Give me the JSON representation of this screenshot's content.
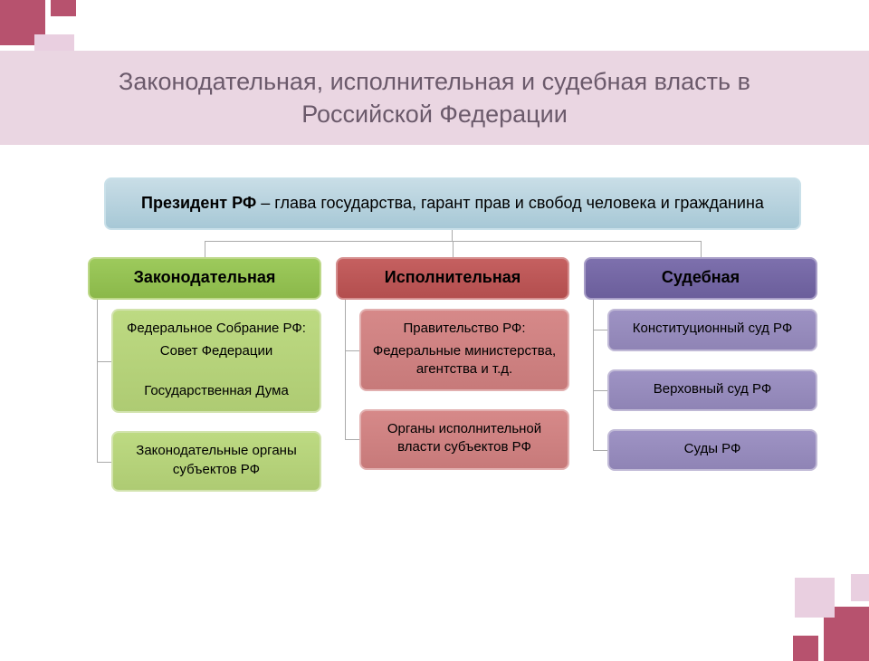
{
  "colors": {
    "title_band_bg": "#ead6e2",
    "title_text": "#6b5a6b",
    "corner_a": "#b7526e",
    "corner_b": "#e9cfe0",
    "president_fill": "#a7c8d6",
    "president_border": "#c9e0e9",
    "green_header": "#8bb84a",
    "green_header_border": "#bdd889",
    "green_item": "#aecb73",
    "green_item_border": "#d2e3ae",
    "red_header": "#b34e4e",
    "red_header_border": "#d58f8f",
    "red_item": "#c77a7a",
    "red_item_border": "#e2b0b0",
    "purple_header": "#6b5e9b",
    "purple_header_border": "#a79dc7",
    "purple_item": "#8f84b5",
    "purple_item_border": "#c0b9d6"
  },
  "title": "Законодательная, исполнительная и судебная власть в Российской Федерации",
  "president": {
    "bold": "Президент РФ",
    "rest": " – глава государства, гарант прав и свобод человека и гражданина"
  },
  "branches": [
    {
      "key": "legislative",
      "header": "Законодательная",
      "header_fill": "green_header",
      "header_border": "green_header_border",
      "item_fill": "green_item",
      "item_border": "green_item_border",
      "items": [
        {
          "lines": [
            "Федеральное Собрание РФ:",
            "Совет Федерации",
            "Государственная Дума"
          ]
        },
        {
          "lines": [
            "Законодательные органы субъектов РФ"
          ]
        }
      ]
    },
    {
      "key": "executive",
      "header": "Исполнительная",
      "header_fill": "red_header",
      "header_border": "red_header_border",
      "item_fill": "red_item",
      "item_border": "red_item_border",
      "items": [
        {
          "lines": [
            "Правительство РФ:",
            "Федеральные министерства, агентства и т.д."
          ]
        },
        {
          "lines": [
            "Органы исполнительной власти субъектов РФ"
          ]
        }
      ]
    },
    {
      "key": "judicial",
      "header": "Судебная",
      "header_fill": "purple_header",
      "header_border": "purple_header_border",
      "item_fill": "purple_item",
      "item_border": "purple_item_border",
      "items": [
        {
          "lines": [
            "Конституционный суд РФ"
          ]
        },
        {
          "lines": [
            "Верховный суд РФ"
          ]
        },
        {
          "lines": [
            "Суды РФ"
          ]
        }
      ]
    }
  ]
}
